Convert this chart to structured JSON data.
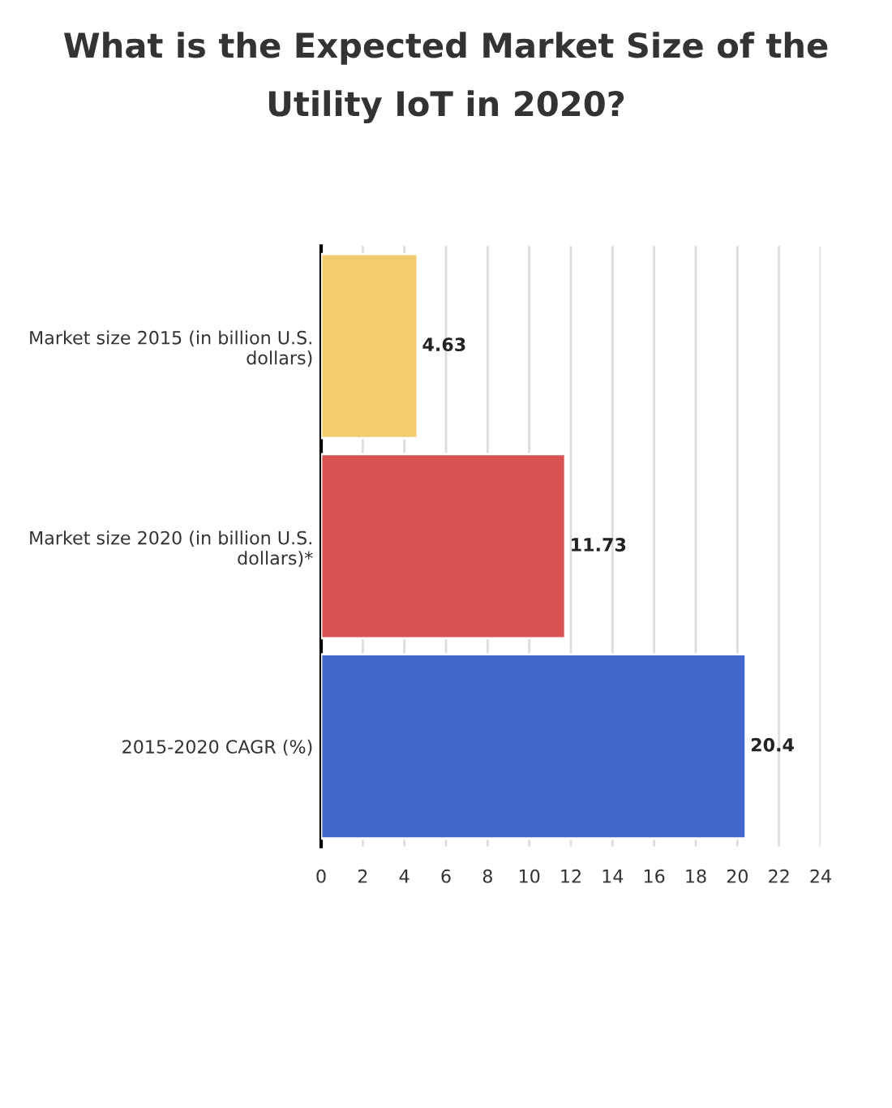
{
  "chart_data": {
    "type": "bar",
    "orientation": "horizontal",
    "title": "What is the Expected Market Size of the Utility IoT in 2020?",
    "categories": [
      "Market size 2015 (in billion U.S. dollars)",
      "Market size 2020 (in billion U.S. dollars)*",
      "2015-2020 CAGR (%)"
    ],
    "values": [
      4.63,
      11.73,
      20.4
    ],
    "colors": [
      "#f0cc6e",
      "#d95252",
      "#4166cc"
    ],
    "xlim": [
      0,
      24
    ],
    "xticks": [
      0,
      2,
      4,
      6,
      8,
      10,
      12,
      14,
      16,
      18,
      20,
      22,
      24
    ],
    "grid": "x",
    "data_labels": true
  }
}
